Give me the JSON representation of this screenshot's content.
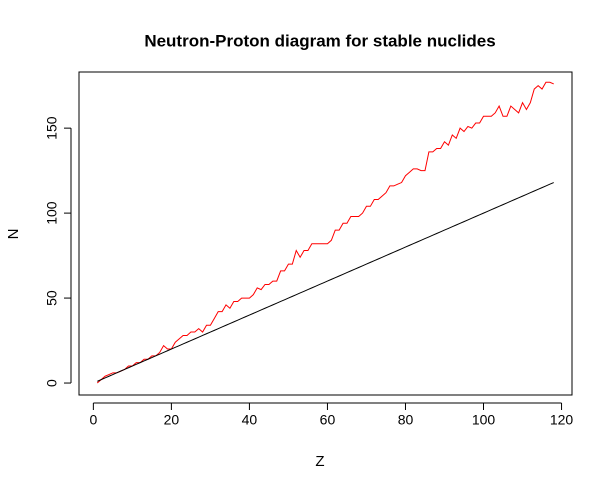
{
  "chart_data": {
    "type": "line",
    "title": "Neutron-Proton diagram for stable nuclides",
    "x_label": "Z",
    "y_label": "N",
    "x": [
      1,
      2,
      3,
      4,
      5,
      6,
      7,
      8,
      9,
      10,
      11,
      12,
      13,
      14,
      15,
      16,
      17,
      18,
      19,
      20,
      21,
      22,
      23,
      24,
      25,
      26,
      27,
      28,
      29,
      30,
      31,
      32,
      33,
      34,
      35,
      36,
      37,
      38,
      39,
      40,
      41,
      42,
      43,
      44,
      45,
      46,
      47,
      48,
      49,
      50,
      51,
      52,
      53,
      54,
      55,
      56,
      57,
      58,
      59,
      60,
      61,
      62,
      63,
      64,
      65,
      66,
      67,
      68,
      69,
      70,
      71,
      72,
      73,
      74,
      75,
      76,
      77,
      78,
      79,
      80,
      81,
      82,
      83,
      84,
      85,
      86,
      87,
      88,
      89,
      90,
      91,
      92,
      93,
      94,
      95,
      96,
      97,
      98,
      99,
      100,
      101,
      102,
      103,
      104,
      105,
      106,
      107,
      108,
      109,
      110,
      111,
      112,
      113,
      114,
      115,
      116,
      117,
      118
    ],
    "series": [
      {
        "color": "#ff0000",
        "values": [
          0,
          2,
          4,
          5,
          6,
          6,
          7,
          8,
          10,
          10,
          12,
          12,
          14,
          14,
          16,
          16,
          18,
          22,
          20,
          20,
          24,
          26,
          28,
          28,
          30,
          30,
          32,
          30,
          34,
          34,
          38,
          42,
          42,
          46,
          44,
          48,
          48,
          50,
          50,
          50,
          52,
          56,
          55,
          58,
          58,
          60,
          60,
          66,
          66,
          70,
          70,
          78,
          74,
          78,
          78,
          82,
          82,
          82,
          82,
          82,
          84,
          90,
          90,
          94,
          94,
          98,
          98,
          98,
          100,
          104,
          104,
          108,
          108,
          110,
          112,
          116,
          116,
          117,
          118,
          122,
          124,
          126,
          126,
          125,
          125,
          136,
          136,
          138,
          138,
          142,
          140,
          146,
          144,
          150,
          148,
          151,
          150,
          153,
          153,
          157,
          157,
          157,
          159,
          163,
          157,
          157,
          163,
          161,
          159,
          165,
          161,
          165,
          173,
          175,
          173,
          177,
          177,
          176
        ]
      },
      {
        "color": "#000000",
        "values": [
          1,
          2,
          3,
          4,
          5,
          6,
          7,
          8,
          9,
          10,
          11,
          12,
          13,
          14,
          15,
          16,
          17,
          18,
          19,
          20,
          21,
          22,
          23,
          24,
          25,
          26,
          27,
          28,
          29,
          30,
          31,
          32,
          33,
          34,
          35,
          36,
          37,
          38,
          39,
          40,
          41,
          42,
          43,
          44,
          45,
          46,
          47,
          48,
          49,
          50,
          51,
          52,
          53,
          54,
          55,
          56,
          57,
          58,
          59,
          60,
          61,
          62,
          63,
          64,
          65,
          66,
          67,
          68,
          69,
          70,
          71,
          72,
          73,
          74,
          75,
          76,
          77,
          78,
          79,
          80,
          81,
          82,
          83,
          84,
          85,
          86,
          87,
          88,
          89,
          90,
          91,
          92,
          93,
          94,
          95,
          96,
          97,
          98,
          99,
          100,
          101,
          102,
          103,
          104,
          105,
          106,
          107,
          108,
          109,
          110,
          111,
          112,
          113,
          114,
          115,
          116,
          117,
          118
        ]
      }
    ],
    "xlim": [
      -3.68,
      122.68
    ],
    "xticks": [
      0,
      20,
      40,
      60,
      80,
      100,
      120
    ],
    "ylim": [
      -7.04,
      183.04
    ],
    "yticks": [
      0,
      50,
      100,
      150
    ]
  }
}
